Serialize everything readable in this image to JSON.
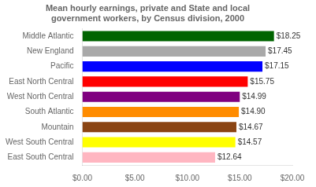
{
  "chart_data": {
    "type": "bar",
    "orientation": "horizontal",
    "title": "Mean hourly earnings, private and State and local\ngovernment workers, by Census division, 2000",
    "categories": [
      "East South Central",
      "West South Central",
      "Mountain",
      "South Atlantic",
      "West North Central",
      "East North Central",
      "Pacific",
      "New England",
      "Middle Atlantic"
    ],
    "values": [
      12.64,
      14.57,
      14.67,
      14.9,
      14.99,
      15.75,
      17.15,
      17.45,
      18.25
    ],
    "value_labels": [
      "$12.64",
      "$14.57",
      "$14.67",
      "$14.90",
      "$14.99",
      "$15.75",
      "$17.15",
      "$17.45",
      "$18.25"
    ],
    "colors": [
      "#FFB6C1",
      "#FFFF00",
      "#8B4513",
      "#FF8C00",
      "#800080",
      "#FF0000",
      "#0000FF",
      "#A9A9A9",
      "#006400"
    ],
    "xlim": [
      0,
      20
    ],
    "xticks": [
      {
        "value": 0,
        "label": "$0.00"
      },
      {
        "value": 5,
        "label": "$5.00"
      },
      {
        "value": 10,
        "label": "$10.00"
      },
      {
        "value": 15,
        "label": "$15.00"
      },
      {
        "value": 20,
        "label": "$20.00"
      }
    ],
    "grid": false,
    "data_labels": true
  }
}
